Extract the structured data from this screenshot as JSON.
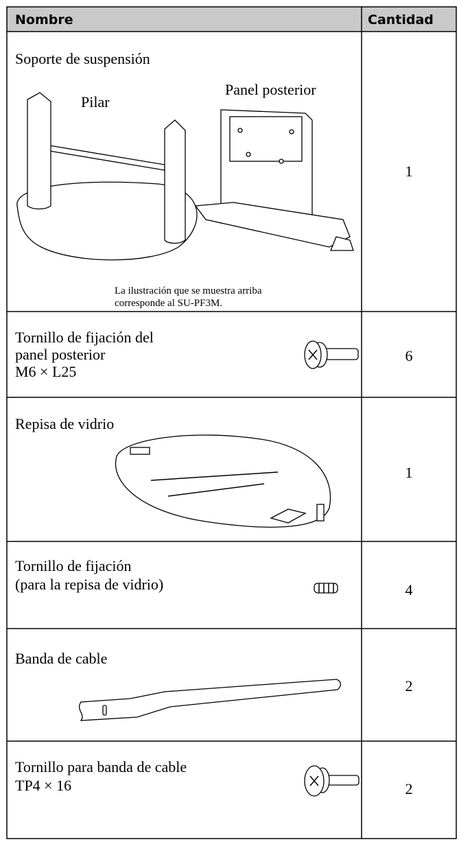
{
  "table": {
    "header": {
      "name": "Nombre",
      "quantity": "Cantidad"
    },
    "rows": [
      {
        "name": [
          "Soporte de suspensión"
        ],
        "quantity": 1,
        "labels": [
          "Pilar",
          "Panel posterior"
        ],
        "note": [
          "La ilustración que se muestra arriba",
          "corresponde al SU-PF3M."
        ]
      },
      {
        "name": [
          "Tornillo de fijación del",
          "panel posterior",
          "M6 × L25"
        ],
        "quantity": 6
      },
      {
        "name": [
          "Repisa de vidrio"
        ],
        "quantity": 1
      },
      {
        "name": [
          "Tornillo de fijación",
          "(para la repisa de vidrio)"
        ],
        "quantity": 4
      },
      {
        "name": [
          "Banda de cable"
        ],
        "quantity": 2
      },
      {
        "name": [
          "Tornillo para banda de cable",
          "TP4 × 16"
        ],
        "quantity": 2
      }
    ]
  }
}
